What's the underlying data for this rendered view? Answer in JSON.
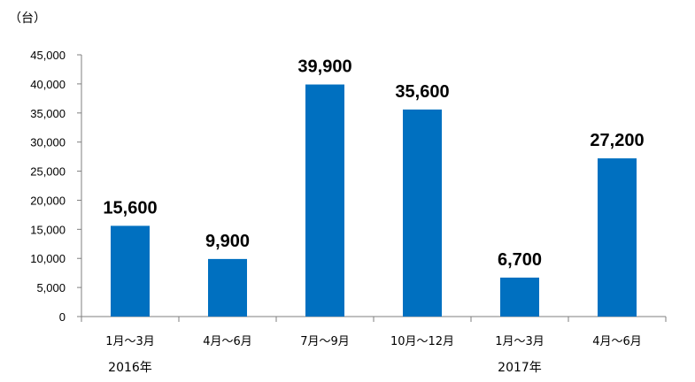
{
  "chart_data": {
    "type": "bar",
    "unit_label": "（台）",
    "categories": [
      "1月～3月",
      "4月～6月",
      "7月～9月",
      "10月～12月",
      "1月～3月",
      "4月～6月"
    ],
    "values": [
      15600,
      9900,
      39900,
      35600,
      6700,
      27200
    ],
    "data_labels": [
      "15,600",
      "9,900",
      "39,900",
      "35,600",
      "6,700",
      "27,200"
    ],
    "year_labels": [
      "2016年",
      "2017年"
    ],
    "ylim": [
      0,
      45000
    ],
    "yticks": [
      0,
      5000,
      10000,
      15000,
      20000,
      25000,
      30000,
      35000,
      40000,
      45000
    ],
    "ytick_labels": [
      "0",
      "5,000",
      "10,000",
      "15,000",
      "20,000",
      "25,000",
      "30,000",
      "35,000",
      "40,000",
      "45,000"
    ],
    "grid": false,
    "bar_color": "#0070C0"
  }
}
